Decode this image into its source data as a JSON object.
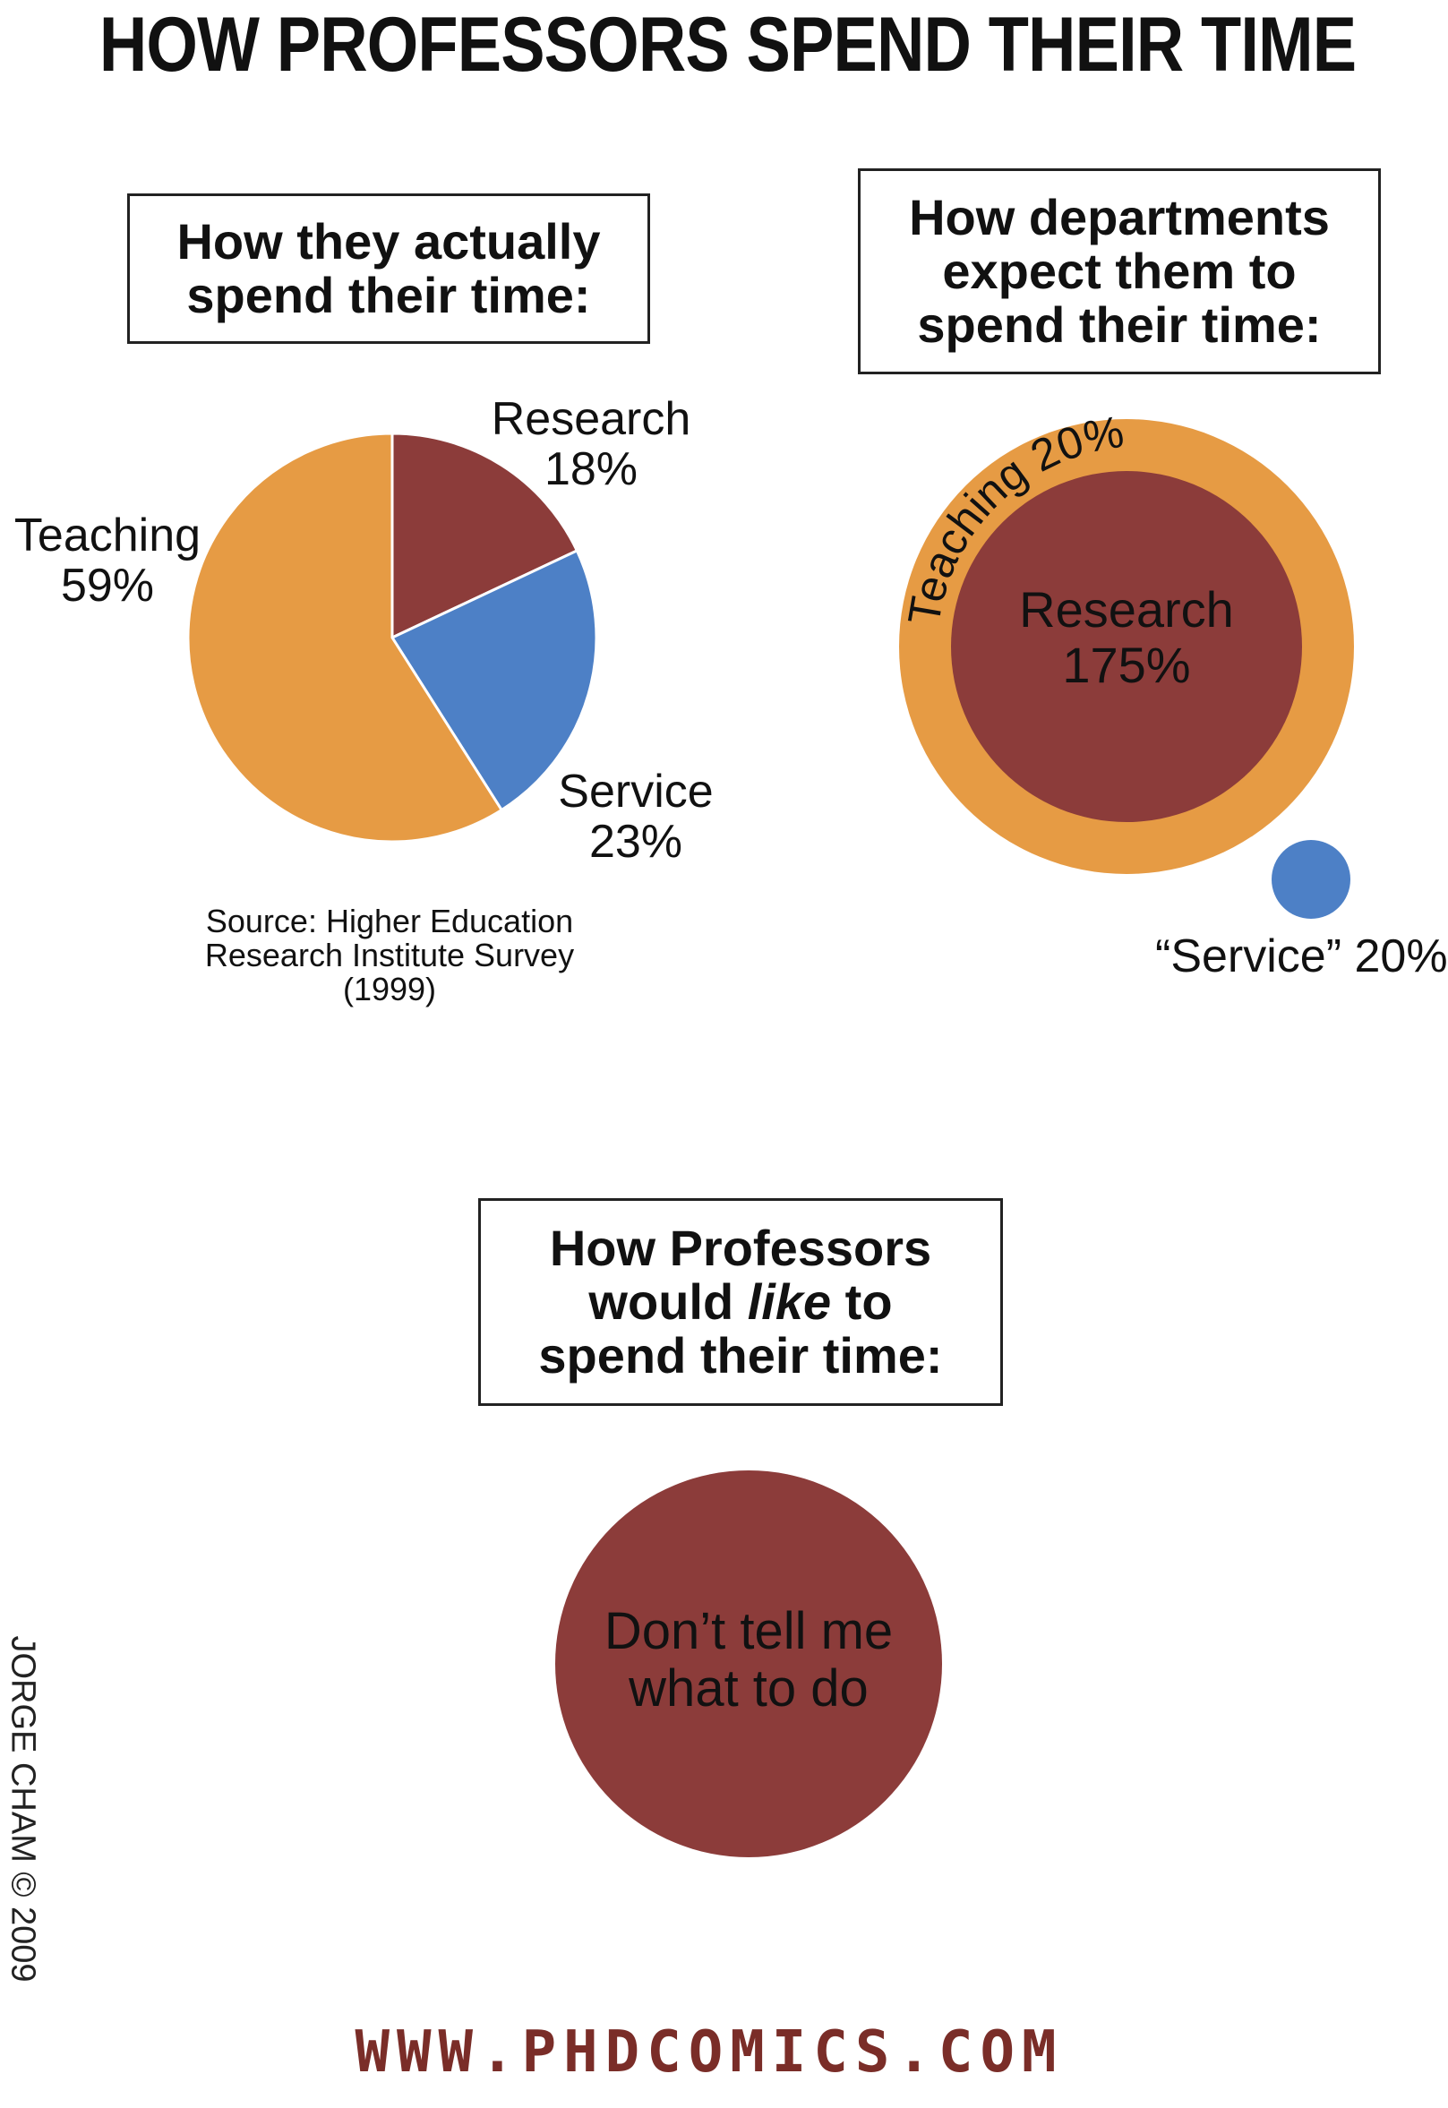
{
  "title": "HOW PROFESSORS SPEND THEIR TIME",
  "colors": {
    "teaching": "#e69b44",
    "research": "#8c3c3a",
    "service": "#4d80c6",
    "footer": "#7a2d28"
  },
  "chart_data": [
    {
      "type": "pie",
      "title": "How they actually spend their time:",
      "categories": [
        "Research",
        "Service",
        "Teaching"
      ],
      "values": [
        18,
        23,
        59
      ],
      "labels": [
        "18%",
        "23%",
        "59%"
      ],
      "colors": [
        "#8c3c3a",
        "#4d80c6",
        "#e69b44"
      ],
      "source": "Source: Higher Education Research Institute Survey (1999)"
    },
    {
      "type": "pie",
      "title": "How departments expect them to spend their time:",
      "categories": [
        "Teaching",
        "Research",
        "“Service”"
      ],
      "values": [
        20,
        175,
        20
      ],
      "labels": [
        "Teaching 20%",
        "Research 175%",
        "“Service” 20%"
      ],
      "colors": [
        "#e69b44",
        "#8c3c3a",
        "#4d80c6"
      ]
    },
    {
      "type": "pie",
      "title": "How Professors would like to spend their time:",
      "categories": [
        "Don’t tell me what to do"
      ],
      "values": [
        100
      ],
      "colors": [
        "#8c3c3a"
      ]
    }
  ],
  "boxes": {
    "actual_line1": "How they actually",
    "actual_line2": "spend their time:",
    "expect_line1": "How departments",
    "expect_line2": "expect them to",
    "expect_line3": "spend their time:",
    "like_line1": "How Professors",
    "like_line2a": "would ",
    "like_line2b": "like",
    "like_line2c": " to",
    "like_line3": "spend their time:"
  },
  "pie_labels": {
    "research_name": "Research",
    "research_value": "18%",
    "teaching_name": "Teaching",
    "teaching_value": "59%",
    "service_name": "Service",
    "service_value": "23%"
  },
  "source_line1": "Source: Higher Education",
  "source_line2": "Research Institute Survey",
  "source_line3": "(1999)",
  "expect_labels": {
    "teaching_arc": "Teaching 20%",
    "research_name": "Research",
    "research_value": "175%",
    "service": "“Service” 20%"
  },
  "like_labels": {
    "line1": "Don’t tell me",
    "line2": "what to do"
  },
  "copyright": "JORGE CHAM © 2009",
  "footer": "WWW.PHDCOMICS.COM"
}
